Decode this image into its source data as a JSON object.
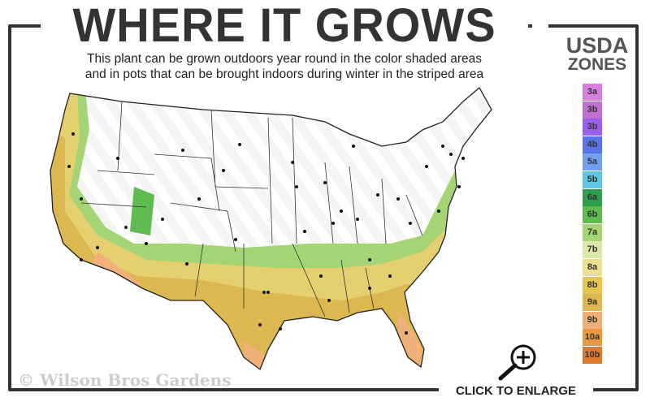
{
  "header": {
    "title": "WHERE IT GROWS",
    "subtitle_line1": "This plant can be grown outdoors year round in the color shaded areas",
    "subtitle_line2": "and in pots that can be brought indoors during winter in the striped area"
  },
  "legend": {
    "title_line1": "USDA",
    "title_line2": "ZONES",
    "zones": [
      {
        "label": "3a",
        "color": "#d97fe0"
      },
      {
        "label": "3b",
        "color": "#c070d0"
      },
      {
        "label": "3b",
        "color": "#9b5ff0"
      },
      {
        "label": "4b",
        "color": "#5a72e8"
      },
      {
        "label": "5a",
        "color": "#6fa0f5"
      },
      {
        "label": "5b",
        "color": "#5ec6e0"
      },
      {
        "label": "6a",
        "color": "#2f9e4a"
      },
      {
        "label": "6b",
        "color": "#5fbb50"
      },
      {
        "label": "7a",
        "color": "#a4d474"
      },
      {
        "label": "7b",
        "color": "#dbe8a8"
      },
      {
        "label": "8a",
        "color": "#ece08f"
      },
      {
        "label": "8b",
        "color": "#e5c650"
      },
      {
        "label": "9a",
        "color": "#ddb750"
      },
      {
        "label": "9b",
        "color": "#f0b07a"
      },
      {
        "label": "10a",
        "color": "#ec9840"
      },
      {
        "label": "10b",
        "color": "#e07a30"
      }
    ]
  },
  "footer": {
    "copyright": "© Wilson Bros Gardens",
    "enlarge_label": "CLICK TO ENLARGE"
  }
}
